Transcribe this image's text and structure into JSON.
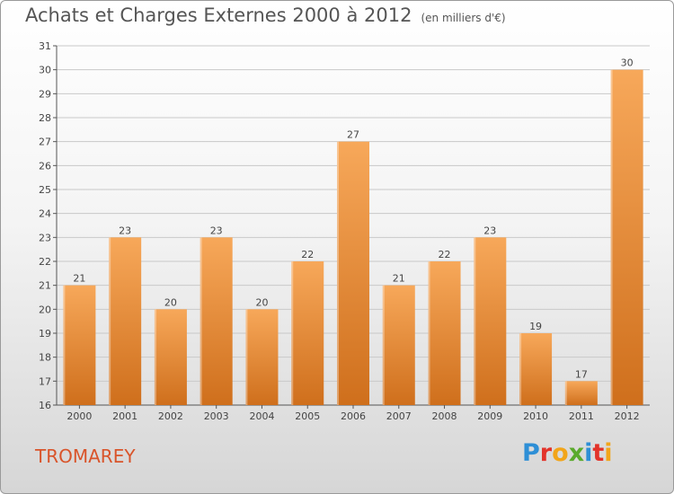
{
  "header": {
    "title": "Achats et Charges Externes 2000 à 2012",
    "unit": "(en milliers d'€)"
  },
  "footer": {
    "location": "TROMAREY",
    "logo_letters": [
      "P",
      "r",
      "o",
      "x",
      "i",
      "t",
      "i"
    ],
    "logo_colors": [
      "#2e8fd6",
      "#e3332a",
      "#f2a51a",
      "#5aaa2c",
      "#2e8fd6",
      "#e3332a",
      "#f2a51a"
    ]
  },
  "colors": {
    "bar_top": "#f7a85a",
    "bar_bottom": "#cf6f1c",
    "grid": "#c9c9c9"
  },
  "chart_data": {
    "type": "bar",
    "title": "Achats et Charges Externes 2000 à 2012",
    "categories": [
      "2000",
      "2001",
      "2002",
      "2003",
      "2004",
      "2005",
      "2006",
      "2007",
      "2008",
      "2009",
      "2010",
      "2011",
      "2012"
    ],
    "values": [
      21,
      23,
      20,
      23,
      20,
      22,
      27,
      21,
      22,
      23,
      19,
      17,
      30
    ],
    "ylim": [
      16,
      31
    ],
    "yticks": [
      16,
      17,
      18,
      19,
      20,
      21,
      22,
      23,
      24,
      25,
      26,
      27,
      28,
      29,
      30,
      31
    ],
    "grid": true,
    "xlabel": "",
    "ylabel": ""
  }
}
